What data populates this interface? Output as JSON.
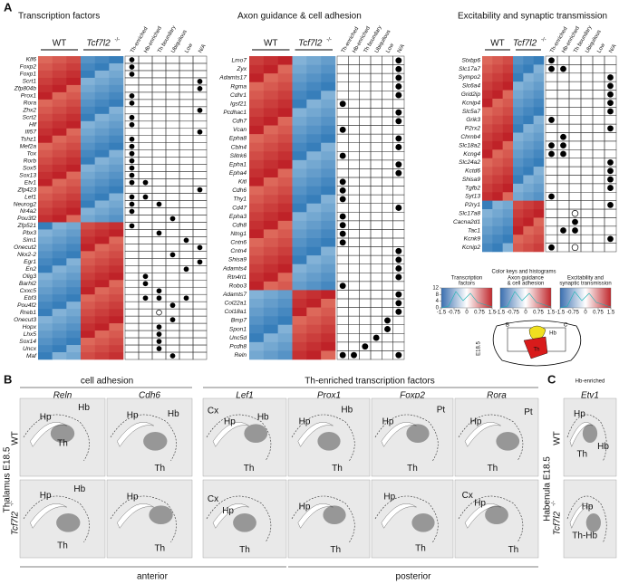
{
  "panel_a": {
    "label": "A",
    "wt": "WT",
    "ko": "Tcf7l2",
    "ko_sup": "-/-",
    "columns": [
      "Th-enriched",
      "Hb-enriched",
      "Th boundary",
      "Ubiquitous",
      "Low",
      "N/A"
    ],
    "heatmaps": [
      {
        "title": "Transcription factors",
        "up_in_wt": 23,
        "genes": [
          "Klf6",
          "Foxp2",
          "Foxp1",
          "Scrt1",
          "Zfp804b",
          "Prox1",
          "Rora",
          "Zhx2",
          "Scrt2",
          "Hlf",
          "Ifi57",
          "Tshz1",
          "Mef2a",
          "Tox",
          "Rorb",
          "Sox5",
          "Sox13",
          "Etv1",
          "Zfp423",
          "Lef1",
          "Neurog2",
          "Nr4a2",
          "Pou3f2",
          "Zfp521",
          "Pbx3",
          "Sim1",
          "Onecut2",
          "Nkx2-2",
          "Egr1",
          "En2",
          "Olig3",
          "Barhl2",
          "Cxxc5",
          "Ebf3",
          "Pou4f2",
          "Rreb1",
          "Onecut3",
          "Hopx",
          "Lhx5",
          "Sox14",
          "Uncx",
          "Maf"
        ],
        "marks": [
          [
            0
          ],
          [
            0
          ],
          [
            0
          ],
          [
            5
          ],
          [
            5
          ],
          [
            0
          ],
          [
            0
          ],
          [
            5
          ],
          [
            0
          ],
          [
            0
          ],
          [
            5
          ],
          [
            0
          ],
          [
            0
          ],
          [
            0
          ],
          [
            0
          ],
          [
            0
          ],
          [
            0
          ],
          [
            0,
            1
          ],
          [
            5
          ],
          [
            0,
            1
          ],
          [
            0,
            2
          ],
          [
            0
          ],
          [
            3
          ],
          [
            0
          ],
          [
            2
          ],
          [
            4
          ],
          [
            5
          ],
          [
            3
          ],
          [
            5
          ],
          [
            4
          ],
          [
            1
          ],
          [
            1
          ],
          [
            2
          ],
          [
            1,
            2,
            4
          ],
          [
            3
          ],
          [],
          [
            3
          ],
          [
            2
          ],
          [
            2
          ],
          [
            2
          ],
          [
            2
          ],
          [
            3
          ]
        ],
        "open_marks": [
          [
            35,
            2
          ]
        ]
      },
      {
        "title": "Axon guidance & cell adhesion",
        "up_in_wt": 27,
        "genes": [
          "Lmo7",
          "Zyx",
          "Adamts17",
          "Rgma",
          "Cdhr1",
          "Igsf21",
          "Pcdhac1",
          "Cdh7",
          "Vcan",
          "Epha8",
          "Cbln4",
          "Slitrk6",
          "Epha1",
          "Epha4",
          "Kitl",
          "Cdh6",
          "Thy1",
          "Cd47",
          "Epha3",
          "Cdh8",
          "Ntng1",
          "Cntn6",
          "Cntn4",
          "Shisa9",
          "Adamts4",
          "Rtn4rl1",
          "Robo3",
          "Adamts7",
          "Col22a1",
          "Col18a1",
          "Bmp7",
          "Spon1",
          "Unc5d",
          "Pcdh8",
          "Reln"
        ],
        "marks": [
          [
            5
          ],
          [
            5
          ],
          [
            5
          ],
          [
            5
          ],
          [
            5
          ],
          [
            0
          ],
          [
            5
          ],
          [
            5
          ],
          [
            0
          ],
          [
            5
          ],
          [
            5
          ],
          [
            0
          ],
          [
            5
          ],
          [
            5
          ],
          [
            0
          ],
          [
            0
          ],
          [
            0
          ],
          [
            5
          ],
          [
            0
          ],
          [
            0
          ],
          [
            0
          ],
          [
            0
          ],
          [
            5
          ],
          [
            5
          ],
          [
            5
          ],
          [
            5
          ],
          [
            0
          ],
          [
            5
          ],
          [
            5
          ],
          [
            5
          ],
          [
            4
          ],
          [
            4
          ],
          [
            3
          ],
          [
            2
          ],
          [
            0,
            1,
            5
          ]
        ],
        "open_marks": []
      },
      {
        "title": "Excitability and synaptic transmission",
        "up_in_wt": 17,
        "genes": [
          "Stxbp6",
          "Slc17a7",
          "Sympo2",
          "Slc6a4",
          "Grid2ip",
          "Kcnip4",
          "Slc5a7",
          "Grik3",
          "P2rx2",
          "Chrnb4",
          "Slc18a2",
          "Kcng4",
          "Slc24a2",
          "Kctd6",
          "Shisa9",
          "Tgfb2",
          "Syt13",
          "P2ry1",
          "Slc17a8",
          "Cacna2d1",
          "Tac1",
          "Kcnk9",
          "Kcnip2"
        ],
        "marks": [
          [
            0
          ],
          [
            0,
            1
          ],
          [
            5
          ],
          [
            5
          ],
          [
            5
          ],
          [
            5
          ],
          [
            5
          ],
          [
            0
          ],
          [
            5
          ],
          [
            1
          ],
          [
            0,
            1
          ],
          [
            0,
            1
          ],
          [
            5
          ],
          [
            5
          ],
          [
            5
          ],
          [
            5
          ],
          [
            0
          ],
          [
            5
          ],
          [],
          [
            2
          ],
          [
            1,
            2
          ],
          [
            5
          ],
          [
            0
          ]
        ],
        "open_marks": [
          [
            18,
            2
          ],
          [
            22,
            2
          ]
        ]
      }
    ],
    "color_key": {
      "title": "Color keys and histograms",
      "keys": [
        [
          "Transcription",
          "factors"
        ],
        [
          "Axon guidance",
          "& cell adhesion"
        ],
        [
          "Excitability and",
          "synaptic transmission"
        ]
      ],
      "xticks": [
        -1.5,
        -0.75,
        0,
        0.75,
        1.5
      ],
      "yticks": [
        0,
        4,
        8,
        12
      ]
    },
    "schematic": {
      "stage": "E18.5",
      "labels": [
        "B",
        "C",
        "Hb",
        "Th"
      ]
    }
  },
  "panel_b": {
    "label": "B",
    "group1": "cell adhesion",
    "group2": "Th-enriched transcription factors",
    "row_title": "Thalamus E18.5",
    "wt": "WT",
    "ko": "Tcf7l2",
    "ko_sup": "-/-",
    "anterior": "anterior",
    "posterior": "posterior",
    "tiles": [
      {
        "gene": "Reln",
        "wt_labels": [
          "Hp",
          "Hb",
          "Th"
        ],
        "ko_labels": [
          "Hp",
          "Hb",
          "Th"
        ]
      },
      {
        "gene": "Cdh6",
        "wt_labels": [
          "Hp",
          "Hb",
          "Th"
        ],
        "ko_labels": [
          "Hp",
          "Th"
        ]
      },
      {
        "gene": "Lef1",
        "wt_labels": [
          "Cx",
          "Hp",
          "Hb",
          "Th"
        ],
        "ko_labels": [
          "Cx",
          "Hp",
          "Th"
        ]
      },
      {
        "gene": "Prox1",
        "wt_labels": [
          "Hp",
          "Hb",
          "Th"
        ],
        "ko_labels": [
          "Hp",
          "Th"
        ]
      },
      {
        "gene": "Foxp2",
        "wt_labels": [
          "Hp",
          "Pt",
          "Th"
        ],
        "ko_labels": [
          "Hp",
          "Th"
        ]
      },
      {
        "gene": "Rora",
        "wt_labels": [
          "Hp",
          "Pt",
          "Th"
        ],
        "ko_labels": [
          "Cx",
          "Hp",
          "Th"
        ]
      }
    ]
  },
  "panel_c": {
    "label": "C",
    "group": "Hb-enriched",
    "row_title": "Habenula E18.5",
    "wt": "WT",
    "ko": "Tcf7l2",
    "ko_sup": "-/-",
    "tile": {
      "gene": "Etv1",
      "wt_labels": [
        "Hp",
        "Hb",
        "Th"
      ],
      "ko_labels": [
        "Hp",
        "Th-Hb"
      ]
    }
  }
}
